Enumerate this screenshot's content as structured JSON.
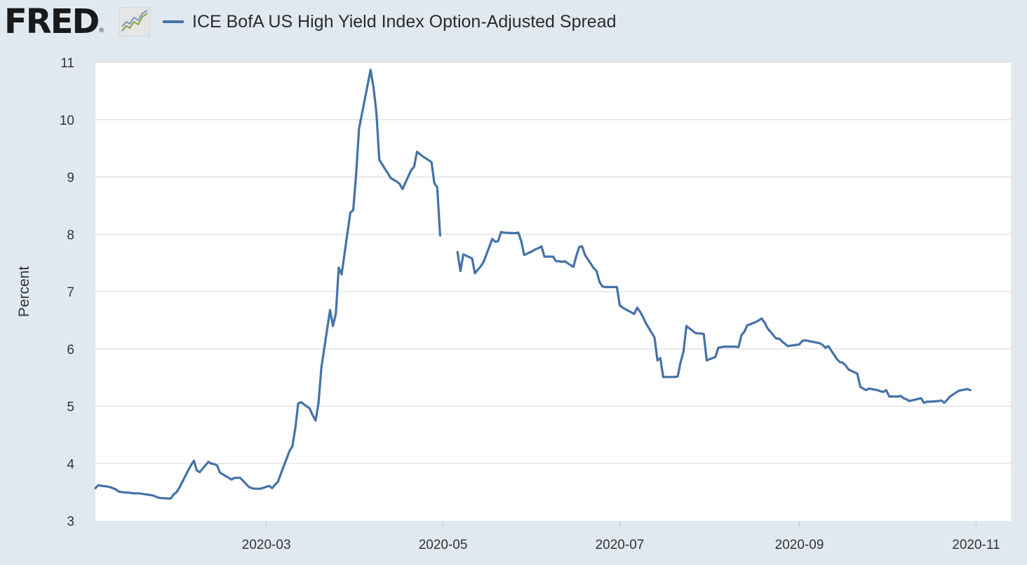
{
  "header": {
    "logo_text": "FRED",
    "logo_mark": "®",
    "logo_icon": "trend-chart-icon"
  },
  "colors": {
    "background": "#e1e9f0",
    "plot_background": "#ffffff",
    "series": "#4572a7",
    "grid": "#d8d8d8"
  },
  "chart_data": {
    "type": "line",
    "title": "",
    "xlabel": "",
    "ylabel": "Percent",
    "ylim": [
      3,
      11
    ],
    "yticks": [
      3,
      4,
      5,
      6,
      7,
      8,
      9,
      10,
      11
    ],
    "xlim": [
      "2020-01-02",
      "2020-11-13"
    ],
    "xticks": [
      {
        "date": "2020-03-01",
        "label": "2020-03"
      },
      {
        "date": "2020-05-01",
        "label": "2020-05"
      },
      {
        "date": "2020-07-01",
        "label": "2020-07"
      },
      {
        "date": "2020-09-01",
        "label": "2020-09"
      },
      {
        "date": "2020-11-01",
        "label": "2020-11"
      }
    ],
    "grid": "horizontal",
    "legend": "top-left",
    "series": [
      {
        "name": "ICE BofA US High Yield Index Option-Adjusted Spread",
        "color": "#4572a7",
        "points": [
          [
            "2020-01-02",
            3.57
          ],
          [
            "2020-01-03",
            3.62
          ],
          [
            "2020-01-06",
            3.6
          ],
          [
            "2020-01-07",
            3.59
          ],
          [
            "2020-01-08",
            3.57
          ],
          [
            "2020-01-09",
            3.55
          ],
          [
            "2020-01-10",
            3.51
          ],
          [
            "2020-01-13",
            3.49
          ],
          [
            "2020-01-14",
            3.49
          ],
          [
            "2020-01-15",
            3.48
          ],
          [
            "2020-01-16",
            3.48
          ],
          [
            "2020-01-17",
            3.48
          ],
          [
            "2020-01-21",
            3.45
          ],
          [
            "2020-01-22",
            3.44
          ],
          [
            "2020-01-23",
            3.42
          ],
          [
            "2020-01-24",
            3.4
          ],
          [
            "2020-01-27",
            3.39
          ],
          [
            "2020-01-28",
            3.39
          ],
          [
            "2020-01-29",
            3.46
          ],
          [
            "2020-01-30",
            3.5
          ],
          [
            "2020-01-31",
            3.58
          ],
          [
            "2020-02-03",
            3.88
          ],
          [
            "2020-02-04",
            3.97
          ],
          [
            "2020-02-05",
            4.05
          ],
          [
            "2020-02-06",
            3.88
          ],
          [
            "2020-02-07",
            3.85
          ],
          [
            "2020-02-10",
            4.03
          ],
          [
            "2020-02-11",
            4.0
          ],
          [
            "2020-02-12",
            3.99
          ],
          [
            "2020-02-13",
            3.97
          ],
          [
            "2020-02-14",
            3.84
          ],
          [
            "2020-02-18",
            3.72
          ],
          [
            "2020-02-19",
            3.75
          ],
          [
            "2020-02-20",
            3.75
          ],
          [
            "2020-02-21",
            3.75
          ],
          [
            "2020-02-24",
            3.59
          ],
          [
            "2020-02-25",
            3.57
          ],
          [
            "2020-02-26",
            3.56
          ],
          [
            "2020-02-27",
            3.56
          ],
          [
            "2020-02-28",
            3.56
          ],
          [
            "2020-03-02",
            3.61
          ],
          [
            "2020-03-03",
            3.57
          ],
          [
            "2020-03-04",
            3.63
          ],
          [
            "2020-03-05",
            3.68
          ],
          [
            "2020-03-06",
            3.82
          ],
          [
            "2020-03-09",
            4.22
          ],
          [
            "2020-03-10",
            4.3
          ],
          [
            "2020-03-11",
            4.62
          ],
          [
            "2020-03-12",
            5.05
          ],
          [
            "2020-03-13",
            5.07
          ],
          [
            "2020-03-16",
            4.96
          ],
          [
            "2020-03-17",
            4.84
          ],
          [
            "2020-03-18",
            4.75
          ],
          [
            "2020-03-19",
            5.05
          ],
          [
            "2020-03-20",
            5.67
          ],
          [
            "2020-03-23",
            6.68
          ],
          [
            "2020-03-24",
            6.4
          ],
          [
            "2020-03-25",
            6.62
          ],
          [
            "2020-03-26",
            7.42
          ],
          [
            "2020-03-27",
            7.3
          ],
          [
            "2020-03-30",
            8.38
          ],
          [
            "2020-03-31",
            8.42
          ],
          [
            "2020-04-01",
            9.05
          ],
          [
            "2020-04-02",
            9.84
          ],
          [
            "2020-04-03",
            10.1
          ],
          [
            "2020-04-06",
            10.87
          ],
          [
            "2020-04-07",
            10.56
          ],
          [
            "2020-04-08",
            10.12
          ],
          [
            "2020-04-09",
            9.3
          ],
          [
            "2020-04-13",
            8.98
          ],
          [
            "2020-04-14",
            8.95
          ],
          [
            "2020-04-15",
            8.92
          ],
          [
            "2020-04-16",
            8.88
          ],
          [
            "2020-04-17",
            8.79
          ],
          [
            "2020-04-20",
            9.12
          ],
          [
            "2020-04-21",
            9.18
          ],
          [
            "2020-04-22",
            9.44
          ],
          [
            "2020-04-23",
            9.4
          ],
          [
            "2020-04-24",
            9.36
          ],
          [
            "2020-04-27",
            9.26
          ],
          [
            "2020-04-28",
            8.89
          ],
          [
            "2020-04-29",
            8.82
          ],
          [
            "2020-04-30",
            7.98
          ],
          null,
          [
            "2020-05-06",
            7.69
          ],
          [
            "2020-05-07",
            7.36
          ],
          [
            "2020-05-08",
            7.65
          ],
          [
            "2020-05-11",
            7.58
          ],
          [
            "2020-05-12",
            7.32
          ],
          [
            "2020-05-13",
            7.38
          ],
          [
            "2020-05-14",
            7.44
          ],
          [
            "2020-05-15",
            7.52
          ],
          [
            "2020-05-18",
            7.92
          ],
          [
            "2020-05-19",
            7.87
          ],
          [
            "2020-05-20",
            7.88
          ],
          [
            "2020-05-21",
            8.04
          ],
          [
            "2020-05-22",
            8.03
          ],
          [
            "2020-05-26",
            8.02
          ],
          [
            "2020-05-27",
            8.03
          ],
          [
            "2020-05-28",
            7.88
          ],
          [
            "2020-05-29",
            7.64
          ],
          [
            "2020-06-01",
            7.71
          ],
          [
            "2020-06-02",
            7.74
          ],
          [
            "2020-06-03",
            7.76
          ],
          [
            "2020-06-04",
            7.79
          ],
          [
            "2020-06-05",
            7.61
          ],
          [
            "2020-06-08",
            7.61
          ],
          [
            "2020-06-09",
            7.53
          ],
          [
            "2020-06-10",
            7.53
          ],
          [
            "2020-06-11",
            7.52
          ],
          [
            "2020-06-12",
            7.53
          ],
          [
            "2020-06-15",
            7.43
          ],
          [
            "2020-06-16",
            7.62
          ],
          [
            "2020-06-17",
            7.78
          ],
          [
            "2020-06-18",
            7.79
          ],
          [
            "2020-06-19",
            7.64
          ],
          [
            "2020-06-22",
            7.41
          ],
          [
            "2020-06-23",
            7.36
          ],
          [
            "2020-06-24",
            7.17
          ],
          [
            "2020-06-25",
            7.09
          ],
          [
            "2020-06-26",
            7.08
          ],
          [
            "2020-06-29",
            7.08
          ],
          [
            "2020-06-30",
            7.08
          ],
          [
            "2020-07-01",
            6.76
          ],
          [
            "2020-07-02",
            6.72
          ],
          [
            "2020-07-06",
            6.61
          ],
          [
            "2020-07-07",
            6.72
          ],
          [
            "2020-07-08",
            6.65
          ],
          [
            "2020-07-09",
            6.56
          ],
          [
            "2020-07-10",
            6.45
          ],
          [
            "2020-07-13",
            6.2
          ],
          [
            "2020-07-14",
            5.8
          ],
          [
            "2020-07-15",
            5.84
          ],
          [
            "2020-07-16",
            5.51
          ],
          [
            "2020-07-17",
            5.51
          ],
          [
            "2020-07-20",
            5.51
          ],
          [
            "2020-07-21",
            5.52
          ],
          [
            "2020-07-22",
            5.77
          ],
          [
            "2020-07-23",
            5.95
          ],
          [
            "2020-07-24",
            6.4
          ],
          [
            "2020-07-27",
            6.28
          ],
          [
            "2020-07-28",
            6.27
          ],
          [
            "2020-07-29",
            6.27
          ],
          [
            "2020-07-30",
            6.26
          ],
          [
            "2020-07-31",
            5.8
          ],
          [
            "2020-08-03",
            5.86
          ],
          [
            "2020-08-04",
            6.02
          ],
          [
            "2020-08-05",
            6.03
          ],
          [
            "2020-08-06",
            6.04
          ],
          [
            "2020-08-07",
            6.04
          ],
          [
            "2020-08-10",
            6.04
          ],
          [
            "2020-08-11",
            6.03
          ],
          [
            "2020-08-12",
            6.24
          ],
          [
            "2020-08-13",
            6.3
          ],
          [
            "2020-08-14",
            6.41
          ],
          [
            "2020-08-17",
            6.47
          ],
          [
            "2020-08-18",
            6.5
          ],
          [
            "2020-08-19",
            6.53
          ],
          [
            "2020-08-20",
            6.46
          ],
          [
            "2020-08-21",
            6.36
          ],
          [
            "2020-08-24",
            6.18
          ],
          [
            "2020-08-25",
            6.18
          ],
          [
            "2020-08-26",
            6.13
          ],
          [
            "2020-08-27",
            6.09
          ],
          [
            "2020-08-28",
            6.05
          ],
          [
            "2020-08-31",
            6.07
          ],
          [
            "2020-09-01",
            6.08
          ],
          [
            "2020-09-02",
            6.14
          ],
          [
            "2020-09-03",
            6.15
          ],
          [
            "2020-09-04",
            6.14
          ],
          [
            "2020-09-08",
            6.1
          ],
          [
            "2020-09-09",
            6.07
          ],
          [
            "2020-09-10",
            6.02
          ],
          [
            "2020-09-11",
            6.05
          ],
          [
            "2020-09-14",
            5.82
          ],
          [
            "2020-09-15",
            5.77
          ],
          [
            "2020-09-16",
            5.76
          ],
          [
            "2020-09-17",
            5.71
          ],
          [
            "2020-09-18",
            5.64
          ],
          [
            "2020-09-21",
            5.57
          ],
          [
            "2020-09-22",
            5.34
          ],
          [
            "2020-09-23",
            5.31
          ],
          [
            "2020-09-24",
            5.28
          ],
          [
            "2020-09-25",
            5.31
          ],
          [
            "2020-09-28",
            5.28
          ],
          [
            "2020-09-29",
            5.26
          ],
          [
            "2020-09-30",
            5.25
          ],
          [
            "2020-10-01",
            5.28
          ],
          [
            "2020-10-02",
            5.17
          ],
          [
            "2020-10-05",
            5.17
          ],
          [
            "2020-10-06",
            5.18
          ],
          [
            "2020-10-07",
            5.14
          ],
          [
            "2020-10-08",
            5.12
          ],
          [
            "2020-10-09",
            5.09
          ],
          [
            "2020-10-13",
            5.14
          ],
          [
            "2020-10-14",
            5.06
          ],
          [
            "2020-10-15",
            5.08
          ],
          [
            "2020-10-16",
            5.08
          ],
          [
            "2020-10-19",
            5.09
          ],
          [
            "2020-10-20",
            5.1
          ],
          [
            "2020-10-21",
            5.06
          ],
          [
            "2020-10-22",
            5.11
          ],
          [
            "2020-10-23",
            5.17
          ],
          [
            "2020-10-26",
            5.27
          ],
          [
            "2020-10-27",
            5.28
          ],
          [
            "2020-10-28",
            5.29
          ],
          [
            "2020-10-29",
            5.3
          ],
          [
            "2020-10-30",
            5.28
          ]
        ]
      }
    ]
  }
}
